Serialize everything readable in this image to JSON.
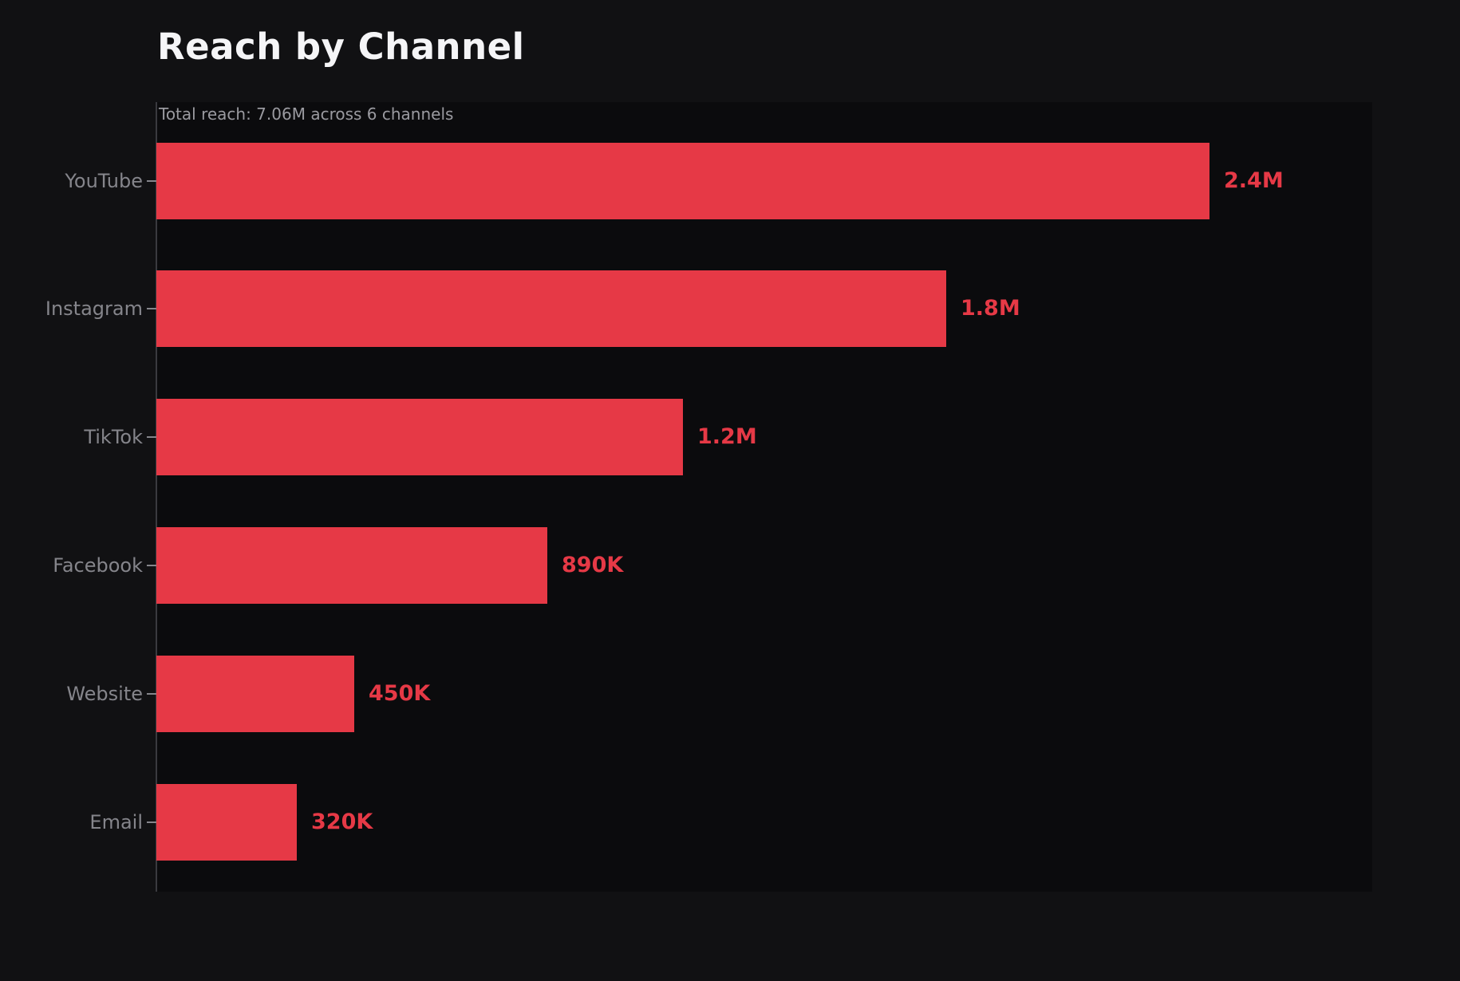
{
  "chart_data": {
    "type": "bar",
    "orientation": "horizontal",
    "title": "Reach by Channel",
    "subtitle": "Total reach: 7.06M across 6 channels",
    "categories": [
      "YouTube",
      "Instagram",
      "TikTok",
      "Facebook",
      "Website",
      "Email"
    ],
    "values": [
      2400000,
      1800000,
      1200000,
      890000,
      450000,
      320000
    ],
    "value_labels": [
      "2.4M",
      "1.8M",
      "1.2M",
      "890K",
      "450K",
      "320K"
    ],
    "total_reach": "7.06M",
    "channel_count": 6,
    "xlim": [
      0,
      2640000
    ],
    "grid": "off",
    "legend": "none",
    "colors": {
      "bar": "#e63946",
      "value_label": "#e63946",
      "category_label": "#85858b",
      "title": "#f5f5f7",
      "subtitle": "#9a9aa0",
      "figure_background": "#111113",
      "axes_background": "#0b0b0d",
      "spine": "#3a3a3f"
    }
  }
}
